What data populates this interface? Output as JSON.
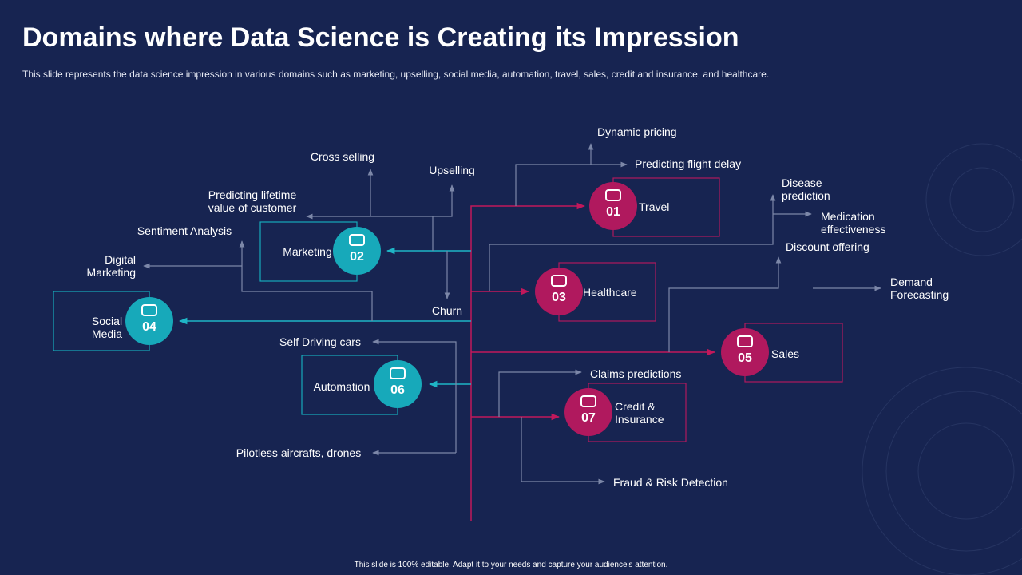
{
  "header": {
    "title": "Domains where Data Science is Creating its Impression",
    "subtitle": "This slide represents the data science impression in various  domains such as marketing, upselling, social media, automation, travel, sales, credit and insurance, and healthcare."
  },
  "nodes": [
    {
      "number": "01",
      "label": "Travel"
    },
    {
      "number": "02",
      "label": "Marketing"
    },
    {
      "number": "03",
      "label": "Healthcare"
    },
    {
      "number": "04",
      "label": "Social Media"
    },
    {
      "number": "05",
      "label": "Sales"
    },
    {
      "number": "06",
      "label": "Automation"
    },
    {
      "number": "07",
      "label": "Credit & Insurance"
    }
  ],
  "leaves": [
    "Dynamic pricing",
    "Predicting flight delay",
    "Cross selling",
    "Upselling",
    "Predicting lifetime value of customer",
    "Sentiment Analysis",
    "Digital Marketing",
    "Churn",
    "Disease prediction",
    "Medication effectiveness",
    "Discount offering",
    "Demand Forecasting",
    "Self Driving cars",
    "Claims predictions",
    "Pilotless aircrafts, drones",
    "Fraud & Risk Detection"
  ],
  "footer": "This slide is 100% editable. Adapt it to your needs and capture your audience's attention."
}
